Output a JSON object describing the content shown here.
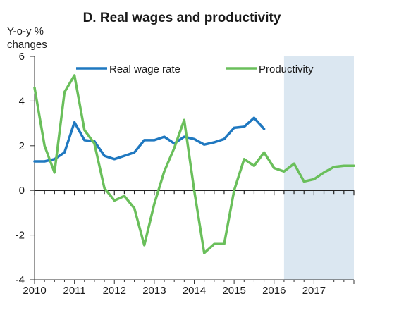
{
  "chart_data": {
    "type": "line",
    "title": "D. Real wages and productivity",
    "ylabel_line1": "Y-o-y %",
    "ylabel_line2": "changes",
    "xlabel": "",
    "ylim": [
      -4,
      6
    ],
    "yticks": [
      -4,
      -2,
      0,
      2,
      4,
      6
    ],
    "xlim": [
      2010.0,
      2018.0
    ],
    "xticks": [
      "2010",
      "2011",
      "2012",
      "2013",
      "2014",
      "2015",
      "2016",
      "2017"
    ],
    "forecast_shade": {
      "from": 2016.25,
      "to": 2018.0,
      "color": "#dbe7f1"
    },
    "legend_position": "top",
    "series": [
      {
        "name": "Real wage rate",
        "color": "#1f78c0",
        "points": [
          [
            2010.0,
            1.3
          ],
          [
            2010.25,
            1.3
          ],
          [
            2010.5,
            1.4
          ],
          [
            2010.75,
            1.7
          ],
          [
            2011.0,
            3.05
          ],
          [
            2011.25,
            2.25
          ],
          [
            2011.5,
            2.2
          ],
          [
            2011.75,
            1.55
          ],
          [
            2012.0,
            1.4
          ],
          [
            2012.25,
            1.55
          ],
          [
            2012.5,
            1.7
          ],
          [
            2012.75,
            2.25
          ],
          [
            2013.0,
            2.25
          ],
          [
            2013.25,
            2.4
          ],
          [
            2013.5,
            2.1
          ],
          [
            2013.75,
            2.4
          ],
          [
            2014.0,
            2.3
          ],
          [
            2014.25,
            2.05
          ],
          [
            2014.5,
            2.15
          ],
          [
            2014.75,
            2.3
          ],
          [
            2015.0,
            2.8
          ],
          [
            2015.25,
            2.85
          ],
          [
            2015.5,
            3.25
          ],
          [
            2015.75,
            2.75
          ]
        ]
      },
      {
        "name": "Productivity",
        "color": "#6abf5b",
        "points": [
          [
            2010.0,
            4.6
          ],
          [
            2010.25,
            2.0
          ],
          [
            2010.5,
            0.8
          ],
          [
            2010.75,
            4.4
          ],
          [
            2011.0,
            5.15
          ],
          [
            2011.25,
            2.7
          ],
          [
            2011.5,
            2.1
          ],
          [
            2011.75,
            0.1
          ],
          [
            2012.0,
            -0.45
          ],
          [
            2012.25,
            -0.25
          ],
          [
            2012.5,
            -0.8
          ],
          [
            2012.75,
            -2.45
          ],
          [
            2013.0,
            -0.6
          ],
          [
            2013.25,
            0.85
          ],
          [
            2013.5,
            1.9
          ],
          [
            2013.75,
            3.15
          ],
          [
            2014.0,
            0.0
          ],
          [
            2014.25,
            -2.8
          ],
          [
            2014.5,
            -2.4
          ],
          [
            2014.75,
            -2.4
          ],
          [
            2015.0,
            0.0
          ],
          [
            2015.25,
            1.4
          ],
          [
            2015.5,
            1.1
          ],
          [
            2015.75,
            1.7
          ],
          [
            2016.0,
            1.0
          ],
          [
            2016.25,
            0.85
          ],
          [
            2016.5,
            1.2
          ],
          [
            2016.75,
            0.4
          ],
          [
            2017.0,
            0.5
          ],
          [
            2017.25,
            0.8
          ],
          [
            2017.5,
            1.05
          ],
          [
            2017.75,
            1.1
          ],
          [
            2018.0,
            1.1
          ]
        ]
      }
    ]
  }
}
